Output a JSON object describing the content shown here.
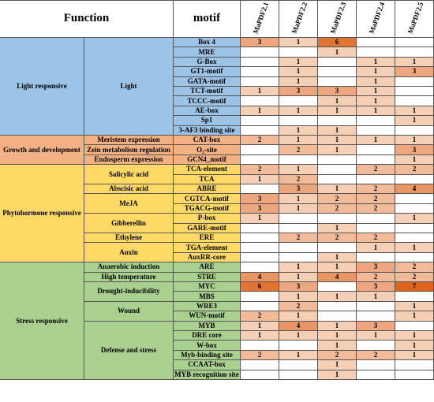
{
  "table": {
    "header": {
      "function": "Function",
      "motif": "motif",
      "genes": [
        "MaPDF2.1",
        "MaPDF2.2",
        "MaPDF2.3",
        "MaPDF2.4",
        "MaPDF2.5"
      ]
    },
    "groups": [
      {
        "function": "Light responsive",
        "color": "#9dc3e6",
        "subgroups": [
          {
            "name": "Light",
            "rows": [
              {
                "motif": "Box 4",
                "values": [
                  3,
                  1,
                  6,
                  null,
                  null
                ]
              },
              {
                "motif": "MRE",
                "values": [
                  null,
                  null,
                  1,
                  null,
                  null
                ]
              },
              {
                "motif": "G-Box",
                "values": [
                  null,
                  1,
                  null,
                  1,
                  1
                ]
              },
              {
                "motif": "GT1-motif",
                "values": [
                  null,
                  1,
                  null,
                  1,
                  3
                ]
              },
              {
                "motif": "GATA-motif",
                "values": [
                  null,
                  1,
                  null,
                  1,
                  null
                ]
              },
              {
                "motif": "TCT-motif",
                "values": [
                  1,
                  3,
                  3,
                  1,
                  null
                ]
              },
              {
                "motif": "TCCC-motif",
                "values": [
                  null,
                  null,
                  1,
                  1,
                  null
                ]
              },
              {
                "motif": "AE-box",
                "values": [
                  1,
                  1,
                  1,
                  1,
                  1
                ]
              },
              {
                "motif": "Sp1",
                "values": [
                  null,
                  null,
                  null,
                  null,
                  1
                ]
              },
              {
                "motif": "3-AF3 binding site",
                "values": [
                  null,
                  1,
                  1,
                  null,
                  null
                ]
              }
            ]
          }
        ]
      },
      {
        "function": "Growth and development",
        "color": "#f4b183",
        "subgroups": [
          {
            "name": "Meristem expression",
            "rows": [
              {
                "motif": "CAT-box",
                "values": [
                  2,
                  1,
                  1,
                  1,
                  1
                ]
              }
            ]
          },
          {
            "name": "Zein metabolism regulation",
            "rows": [
              {
                "motif": "O₂-site",
                "values": [
                  null,
                  2,
                  1,
                  null,
                  3
                ]
              }
            ]
          },
          {
            "name": "Endosperm expression",
            "rows": [
              {
                "motif": "GCN4_motif",
                "values": [
                  null,
                  null,
                  null,
                  null,
                  1
                ]
              }
            ]
          }
        ]
      },
      {
        "function": "Phytohormone responsive",
        "color": "#ffd966",
        "subgroups": [
          {
            "name": "Salicylic acid",
            "rows": [
              {
                "motif": "TCA-element",
                "values": [
                  2,
                  1,
                  null,
                  2,
                  2
                ]
              },
              {
                "motif": "TCA",
                "values": [
                  1,
                  2,
                  null,
                  null,
                  null
                ]
              }
            ]
          },
          {
            "name": "Abscisic acid",
            "rows": [
              {
                "motif": "ABRE",
                "values": [
                  null,
                  3,
                  1,
                  2,
                  4
                ]
              }
            ]
          },
          {
            "name": "MeJA",
            "rows": [
              {
                "motif": "CGTCA-motif",
                "values": [
                  3,
                  1,
                  2,
                  2,
                  null
                ]
              },
              {
                "motif": "TGACG-motif",
                "values": [
                  3,
                  1,
                  2,
                  2,
                  null
                ]
              }
            ]
          },
          {
            "name": "Gibberellin",
            "rows": [
              {
                "motif": "P-box",
                "values": [
                  1,
                  null,
                  null,
                  null,
                  1
                ]
              },
              {
                "motif": "GARE-motif",
                "values": [
                  null,
                  null,
                  1,
                  null,
                  null
                ]
              }
            ]
          },
          {
            "name": "Ethylene",
            "rows": [
              {
                "motif": "ERE",
                "values": [
                  null,
                  2,
                  2,
                  2,
                  null
                ]
              }
            ]
          },
          {
            "name": "Auxin",
            "rows": [
              {
                "motif": "TGA-element",
                "values": [
                  null,
                  null,
                  null,
                  1,
                  1
                ]
              },
              {
                "motif": "AuxRR-core",
                "values": [
                  null,
                  null,
                  1,
                  null,
                  null
                ]
              }
            ]
          }
        ]
      },
      {
        "function": "Stress responsive",
        "color": "#a9d08e",
        "subgroups": [
          {
            "name": "Anaerobic induction",
            "rows": [
              {
                "motif": "ARE",
                "values": [
                  null,
                  1,
                  1,
                  3,
                  2
                ]
              }
            ]
          },
          {
            "name": "High temperature",
            "rows": [
              {
                "motif": "STRE",
                "values": [
                  4,
                  1,
                  4,
                  2,
                  2
                ]
              }
            ]
          },
          {
            "name": "Drought-inducibility",
            "rows": [
              {
                "motif": "MYC",
                "values": [
                  6,
                  3,
                  null,
                  3,
                  7
                ]
              },
              {
                "motif": "MBS",
                "values": [
                  null,
                  1,
                  1,
                  1,
                  null
                ]
              }
            ]
          },
          {
            "name": "Wound",
            "rows": [
              {
                "motif": "WRE3",
                "values": [
                  null,
                  2,
                  null,
                  null,
                  1
                ]
              },
              {
                "motif": "WUN-motif",
                "values": [
                  2,
                  1,
                  null,
                  null,
                  1
                ]
              }
            ]
          },
          {
            "name": "Defense and stress",
            "rows": [
              {
                "motif": "MYB",
                "values": [
                  1,
                  4,
                  1,
                  3,
                  null
                ]
              },
              {
                "motif": "DRE core",
                "values": [
                  1,
                  1,
                  1,
                  1,
                  1
                ]
              },
              {
                "motif": "W-box",
                "values": [
                  null,
                  null,
                  1,
                  null,
                  1
                ]
              },
              {
                "motif": "Myb-binding site",
                "values": [
                  2,
                  1,
                  2,
                  2,
                  1
                ]
              },
              {
                "motif": "CCAAT-box",
                "values": [
                  null,
                  null,
                  1,
                  null,
                  null
                ]
              },
              {
                "motif": "MYB recognition site",
                "values": [
                  null,
                  null,
                  1,
                  null,
                  null
                ]
              }
            ]
          }
        ]
      }
    ]
  }
}
